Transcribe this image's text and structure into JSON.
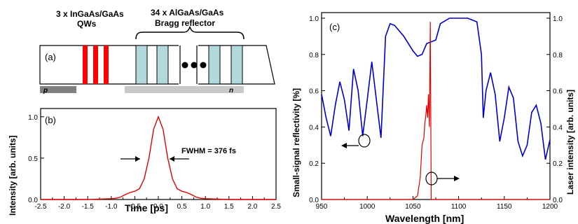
{
  "panel_a": {
    "label": "(a)",
    "qw_title_1": "3 x InGaAs/GaAs",
    "qw_title_2": "QWs",
    "dbr_title_1": "34 x AlGaAs/GaAs",
    "dbr_title_2": "Bragg reflector",
    "p_label": "p",
    "n_label": "n",
    "colors": {
      "quantum_well": "#ff0000",
      "bragg_layer": "#b2d8de",
      "contact": "#808080",
      "n_region": "#c8c8c8"
    }
  },
  "chart_data": [
    {
      "panel": "(b)",
      "type": "line",
      "title": "",
      "xlabel": "Time [ps]",
      "ylabel": "Intensity [arb. units]",
      "xlim": [
        -2.5,
        2.5
      ],
      "ylim": [
        0.0,
        1.1
      ],
      "xticks": [
        "-2.5",
        "-2.0",
        "-1.5",
        "-1.0",
        "-0.5",
        "0.0",
        "0.5",
        "1.0",
        "1.5",
        "2.0",
        "2.5"
      ],
      "yticks": [
        "0.0",
        "0.5",
        "1.0"
      ],
      "annotation": "FWHM = 376 fs",
      "grid": false,
      "series": [
        {
          "color": "#e00000",
          "x": [
            -2.5,
            -2.0,
            -1.5,
            -1.0,
            -0.9,
            -0.8,
            -0.7,
            -0.6,
            -0.5,
            -0.4,
            -0.3,
            -0.2,
            -0.1,
            0.0,
            0.1,
            0.2,
            0.3,
            0.4,
            0.5,
            0.6,
            0.7,
            0.8,
            0.9,
            1.0,
            1.5,
            2.0,
            2.5
          ],
          "y": [
            0.0,
            0.0,
            0.0,
            0.01,
            0.015,
            0.03,
            0.06,
            0.085,
            0.1,
            0.13,
            0.25,
            0.5,
            0.85,
            1.0,
            0.85,
            0.5,
            0.25,
            0.13,
            0.1,
            0.085,
            0.06,
            0.03,
            0.015,
            0.01,
            0.0,
            0.0,
            0.0
          ]
        }
      ]
    },
    {
      "panel": "(c)",
      "type": "line",
      "title": "",
      "xlabel": "Wavelength [nm]",
      "ylabel": "Small-signal reflectivity [%]",
      "ylabel_right": "Laser intensity [arb. units]",
      "xlim": [
        950,
        1200
      ],
      "ylim": [
        0.0,
        1.0
      ],
      "ylim_right": [
        0.0,
        1.0
      ],
      "xticks": [
        "950",
        "1000",
        "1050",
        "1100",
        "1150",
        "1200"
      ],
      "yticks": [
        "0.0",
        "0.2",
        "0.4",
        "0.6",
        "0.8",
        "1.0"
      ],
      "yticks_right": [
        "0.0",
        "0.2",
        "0.4",
        "0.6",
        "0.8",
        "1.0"
      ],
      "grid": false,
      "series": [
        {
          "axis": "left",
          "color": "#0000cc",
          "x": [
            950,
            955,
            960,
            965,
            970,
            975,
            980,
            985,
            990,
            995,
            1000,
            1005,
            1010,
            1015,
            1020,
            1025,
            1030,
            1040,
            1050,
            1055,
            1060,
            1065,
            1070,
            1075,
            1080,
            1090,
            1100,
            1110,
            1120,
            1125,
            1127,
            1130,
            1135,
            1140,
            1145,
            1150,
            1155,
            1160,
            1165,
            1170,
            1175,
            1180,
            1185,
            1190,
            1195,
            1200
          ],
          "y": [
            0.58,
            0.45,
            0.35,
            0.52,
            0.65,
            0.55,
            0.38,
            0.72,
            0.6,
            0.35,
            0.55,
            0.76,
            0.55,
            0.34,
            0.9,
            0.97,
            0.96,
            0.9,
            0.82,
            0.79,
            0.8,
            0.86,
            0.87,
            0.88,
            0.97,
            1.0,
            1.0,
            1.0,
            0.98,
            0.8,
            0.45,
            0.6,
            0.7,
            0.58,
            0.32,
            0.45,
            0.62,
            0.56,
            0.32,
            0.24,
            0.3,
            0.48,
            0.52,
            0.42,
            0.22,
            0.33
          ]
        },
        {
          "axis": "right",
          "color": "#e00000",
          "x": [
            950,
            1040,
            1050,
            1055,
            1058,
            1060,
            1062,
            1063,
            1064,
            1065,
            1066,
            1067,
            1068,
            1069,
            1070,
            1071,
            1072,
            1075,
            1080,
            1200
          ],
          "y": [
            0.0,
            0.0,
            0.0,
            0.02,
            0.12,
            0.3,
            0.34,
            0.42,
            0.46,
            0.52,
            0.45,
            0.58,
            0.4,
            0.98,
            0.0,
            0.0,
            0.0,
            0.0,
            0.0,
            0.0
          ]
        }
      ],
      "panel_label": "(c)"
    }
  ]
}
